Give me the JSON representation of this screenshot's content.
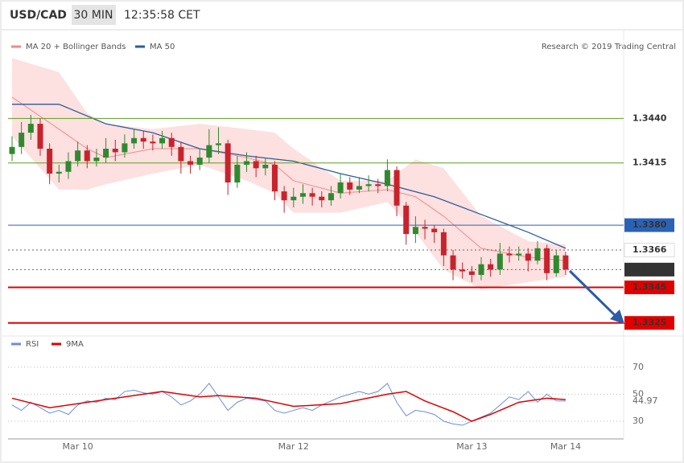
{
  "header": {
    "symbol": "USD/CAD",
    "interval": "30 MIN",
    "time": "12:35:58 CET"
  },
  "credit": "Research © 2019 Trading Central",
  "chart_data": [
    {
      "type": "candlestick",
      "categories": [
        null,
        null,
        null,
        null,
        null,
        null,
        null,
        "Mar 10",
        null,
        null,
        null,
        null,
        null,
        null,
        null,
        null,
        null,
        null,
        null,
        null,
        null,
        null,
        null,
        null,
        null,
        null,
        null,
        null,
        null,
        null,
        "Mar 12",
        null,
        null,
        null,
        null,
        null,
        null,
        null,
        null,
        null,
        null,
        null,
        null,
        null,
        null,
        null,
        null,
        null,
        null,
        "Mar 13",
        null,
        null,
        null,
        null,
        null,
        null,
        null,
        null,
        null,
        "Mar 14"
      ],
      "open": [
        1.342,
        1.3424,
        1.3432,
        1.3437,
        1.3423,
        1.3409,
        1.341,
        1.3416,
        1.3422,
        1.3416,
        1.3418,
        1.3423,
        1.3421,
        1.3426,
        1.3429,
        1.3427,
        1.3426,
        1.3429,
        1.3424,
        1.3416,
        1.3414,
        1.3418,
        1.3425,
        1.3426,
        1.3404,
        1.3414,
        1.3416,
        1.3412,
        1.3414,
        1.3399,
        1.3394,
        1.3396,
        1.3398,
        1.3396,
        1.3394,
        1.3398,
        1.3404,
        1.34,
        1.3402,
        1.3403,
        1.3402,
        1.3411,
        1.3391,
        1.3375,
        1.3379,
        1.3378,
        1.3376,
        1.3363,
        1.3355,
        1.3354,
        1.3352,
        1.3358,
        1.3355,
        1.3364,
        1.3363,
        1.3364,
        1.336,
        1.3367,
        1.3353,
        1.3363
      ],
      "high": [
        1.343,
        1.3438,
        1.3442,
        1.344,
        1.3426,
        1.3414,
        1.3421,
        1.3427,
        1.3425,
        1.3423,
        1.3429,
        1.3428,
        1.3431,
        1.3434,
        1.3433,
        1.3431,
        1.3433,
        1.3432,
        1.3427,
        1.3419,
        1.3423,
        1.3434,
        1.3435,
        1.3428,
        1.3419,
        1.3421,
        1.3419,
        1.3418,
        1.3416,
        1.3402,
        1.3401,
        1.3403,
        1.3401,
        1.3399,
        1.3402,
        1.3409,
        1.3407,
        1.3407,
        1.3408,
        1.3406,
        1.3417,
        1.3413,
        1.3393,
        1.3385,
        1.3383,
        1.338,
        1.3378,
        1.3366,
        1.3359,
        1.3357,
        1.3362,
        1.3361,
        1.337,
        1.3368,
        1.3368,
        1.3367,
        1.3371,
        1.3369,
        1.3366,
        1.3365
      ],
      "low": [
        1.3416,
        1.342,
        1.3428,
        1.3419,
        1.3403,
        1.3404,
        1.3406,
        1.3413,
        1.3412,
        1.3413,
        1.3415,
        1.3416,
        1.3418,
        1.3423,
        1.3423,
        1.3422,
        1.3423,
        1.3419,
        1.3409,
        1.3409,
        1.3411,
        1.3415,
        1.342,
        1.3397,
        1.3401,
        1.341,
        1.3407,
        1.3408,
        1.3394,
        1.3387,
        1.339,
        1.3392,
        1.3391,
        1.339,
        1.3391,
        1.3395,
        1.3397,
        1.3398,
        1.3399,
        1.3398,
        1.3399,
        1.3385,
        1.3369,
        1.337,
        1.3372,
        1.337,
        1.3357,
        1.3349,
        1.335,
        1.3348,
        1.3349,
        1.3351,
        1.3352,
        1.3359,
        1.336,
        1.3354,
        1.3358,
        1.3349,
        1.3351,
        1.3352
      ],
      "close": [
        1.3424,
        1.3432,
        1.3437,
        1.3423,
        1.3409,
        1.341,
        1.3416,
        1.3422,
        1.3416,
        1.3418,
        1.3423,
        1.3421,
        1.3426,
        1.3429,
        1.3427,
        1.3426,
        1.3429,
        1.3424,
        1.3416,
        1.3414,
        1.3418,
        1.3425,
        1.3426,
        1.3404,
        1.3414,
        1.3416,
        1.3412,
        1.3414,
        1.3399,
        1.3394,
        1.3396,
        1.3398,
        1.3396,
        1.3394,
        1.3398,
        1.3404,
        1.34,
        1.3402,
        1.3403,
        1.3402,
        1.3411,
        1.3391,
        1.3375,
        1.3379,
        1.3378,
        1.3376,
        1.3363,
        1.3355,
        1.3354,
        1.3352,
        1.3358,
        1.3355,
        1.3364,
        1.3363,
        1.3364,
        1.336,
        1.3367,
        1.3353,
        1.3363,
        1.3355
      ],
      "up_color": "#2f8a2f",
      "down_color": "#c8232c",
      "overlays": [
        {
          "name": "MA 20 + Bollinger Bands",
          "color": "#f08a8a",
          "band_color": "#fde0e0",
          "x": [
            0,
            5,
            8,
            10,
            15,
            20,
            25,
            28,
            30,
            35,
            40,
            43,
            46,
            50,
            55,
            59
          ],
          "values": [
            1.3452,
            1.3434,
            1.3423,
            1.3418,
            1.3423,
            1.3423,
            1.3418,
            1.3414,
            1.3405,
            1.3398,
            1.34,
            1.3396,
            1.3385,
            1.3367,
            1.3362,
            1.336
          ],
          "upper": [
            1.3474,
            1.3466,
            1.3443,
            1.3437,
            1.3434,
            1.3437,
            1.3434,
            1.3432,
            1.3423,
            1.3405,
            1.3405,
            1.3417,
            1.3412,
            1.3385,
            1.3371,
            1.3369
          ],
          "lower": [
            1.343,
            1.34,
            1.34,
            1.3403,
            1.3409,
            1.3414,
            1.3405,
            1.3398,
            1.3387,
            1.3387,
            1.3393,
            1.3376,
            1.3355,
            1.3344,
            1.3348,
            1.3351
          ]
        },
        {
          "name": "MA 50",
          "color": "#2e5c9a",
          "x": [
            0,
            5,
            10,
            15,
            20,
            25,
            30,
            35,
            40,
            45,
            50,
            55,
            59
          ],
          "values": [
            1.3448,
            1.3448,
            1.3437,
            1.3432,
            1.3423,
            1.3419,
            1.3416,
            1.3409,
            1.3403,
            1.3396,
            1.3386,
            1.3376,
            1.3367
          ]
        }
      ],
      "legend": "top-left",
      "ylim": [
        1.3319,
        1.3475
      ],
      "levels": [
        {
          "value": 1.344,
          "label": "1.3440",
          "color": "#5a9e1e",
          "line": "solid",
          "label_style": "text"
        },
        {
          "value": 1.3415,
          "label": "1.3415",
          "color": "#5a9e1e",
          "line": "solid",
          "label_style": "text"
        },
        {
          "value": 1.338,
          "label": "1.3380",
          "color": "#2a62b8",
          "line": "solid",
          "label_style": "box"
        },
        {
          "value": 1.3366,
          "label": "1.3366",
          "color": "#2a62b8",
          "line": "dotted",
          "label_style": "outline"
        },
        {
          "value": 1.3355,
          "label": "1.3355",
          "color": "#333333",
          "line": "dotted",
          "label_style": "box"
        },
        {
          "value": 1.3345,
          "label": "1.3345",
          "color": "#e00000",
          "line": "solid",
          "label_style": "box"
        },
        {
          "value": 1.3325,
          "label": "1.3325",
          "color": "#e00000",
          "line": "solid",
          "label_style": "box"
        }
      ]
    },
    {
      "type": "line",
      "series": [
        {
          "name": "RSI",
          "color": "#6b8de0",
          "values": [
            42,
            38,
            44,
            40,
            36,
            38,
            35,
            42,
            45,
            44,
            47,
            46,
            52,
            53,
            51,
            50,
            52,
            48,
            42,
            45,
            50,
            58,
            48,
            38,
            44,
            47,
            46,
            45,
            38,
            36,
            38,
            40,
            38,
            42,
            45,
            48,
            50,
            52,
            50,
            52,
            58,
            44,
            34,
            38,
            37,
            35,
            30,
            28,
            27,
            30,
            33,
            36,
            42,
            48,
            46,
            52,
            44,
            50,
            45,
            44.97
          ]
        },
        {
          "name": "9MA",
          "color": "#e00000",
          "x": [
            0,
            4,
            10,
            16,
            20,
            22,
            26,
            30,
            35,
            40,
            42,
            44,
            47,
            49,
            51,
            54,
            57,
            59
          ],
          "values": [
            47,
            40,
            46,
            52,
            48,
            49,
            47,
            41,
            43,
            50,
            52,
            45,
            37,
            30,
            35,
            44,
            47,
            46
          ]
        }
      ],
      "ylim": [
        17.5,
        80
      ],
      "yticks": [
        70,
        50,
        30
      ],
      "grid": true
    }
  ]
}
